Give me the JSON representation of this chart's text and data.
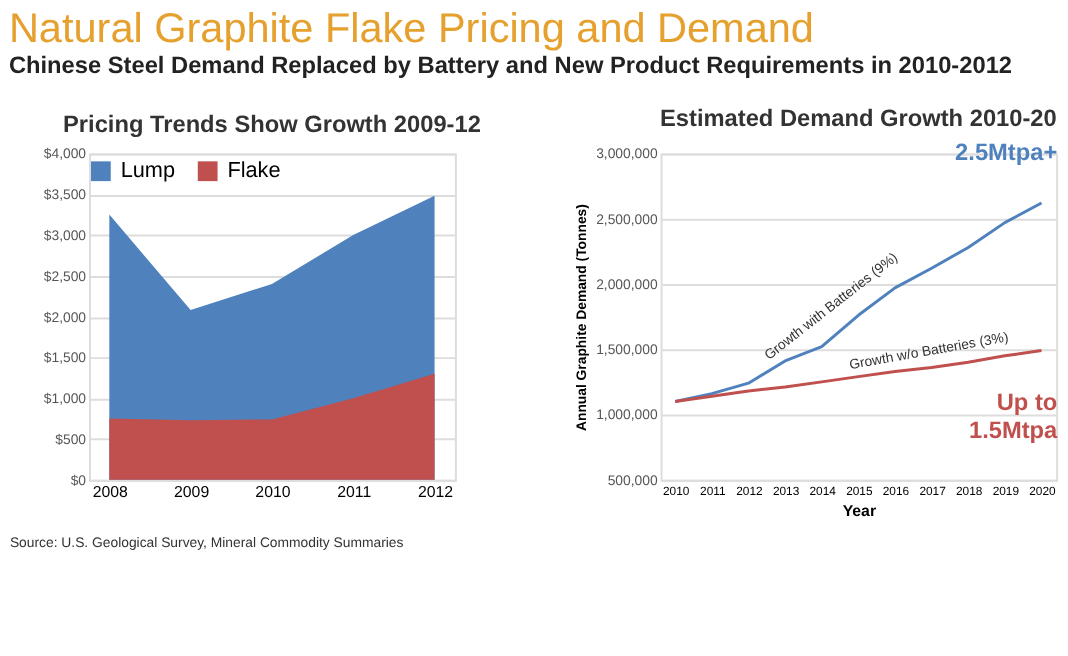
{
  "chart_data": [
    {
      "type": "other",
      "title": "Natural Graphite Flake Pricing and Demand",
      "subtitle": "Chinese Steel Demand Replaced by Battery and New Product Requirements in 2010-2012"
    },
    {
      "type": "area",
      "title": "Pricing Trends Show Growth 2009-12",
      "categories": [
        "2008",
        "2009",
        "2010",
        "2011",
        "2012"
      ],
      "series": [
        {
          "name": "Lump",
          "color": "#4f81bd",
          "values": [
            3250,
            2080,
            2400,
            3000,
            3480
          ]
        },
        {
          "name": "Flake",
          "color": "#c0504d",
          "values": [
            750,
            730,
            740,
            1000,
            1300
          ]
        }
      ],
      "ylim": [
        0,
        4000
      ],
      "yticks": [
        {
          "value": 0,
          "label": "$0"
        },
        {
          "value": 500,
          "label": "$500"
        },
        {
          "value": 1000,
          "label": "$1,000"
        },
        {
          "value": 1500,
          "label": "$1,500"
        },
        {
          "value": 2000,
          "label": "$2,000"
        },
        {
          "value": 2500,
          "label": "$2,500"
        },
        {
          "value": 3000,
          "label": "$3,000"
        },
        {
          "value": 3500,
          "label": "$3,500"
        },
        {
          "value": 4000,
          "label": "$4,000"
        }
      ],
      "grid": "y",
      "legend": "top",
      "annotations": [
        "Source: U.S. Geological Survey, Mineral Commodity Summaries"
      ]
    },
    {
      "type": "line",
      "title": "Estimated Demand Growth 2010-20",
      "xlabel": "Year",
      "ylabel": "Annual Graphite Demand (Tonnes)",
      "categories": [
        "2010",
        "2011",
        "2012",
        "2013",
        "2014",
        "2015",
        "2016",
        "2017",
        "2018",
        "2019",
        "2020"
      ],
      "series": [
        {
          "color": "#4f81bd",
          "values": [
            1100000,
            1160000,
            1240000,
            1410000,
            1520000,
            1760000,
            1970000,
            2120000,
            2280000,
            2470000,
            2620000
          ]
        },
        {
          "color": "#c0504d",
          "values": [
            1100000,
            1140000,
            1180000,
            1210000,
            1250000,
            1290000,
            1330000,
            1360000,
            1400000,
            1450000,
            1490000
          ]
        }
      ],
      "ylim": [
        500000,
        3000000
      ],
      "yticks": [
        {
          "value": 500000,
          "label": "500,000"
        },
        {
          "value": 1000000,
          "label": "1,000,000"
        },
        {
          "value": 1500000,
          "label": "1,500,000"
        },
        {
          "value": 2000000,
          "label": "2,000,000"
        },
        {
          "value": 2500000,
          "label": "2,500,000"
        },
        {
          "value": 3000000,
          "label": "3,000,000"
        }
      ],
      "grid": "y",
      "legend": false,
      "marker": "none",
      "line_style": "solid",
      "annotations": [
        {
          "text": "Growth with Batteries (9%)",
          "x": "2015",
          "y": 1758000
        },
        {
          "text": "Growth w/o Batteries (3%)",
          "x": "2017",
          "y": 1365000
        },
        {
          "text": "2.5Mtpa+",
          "x": "2020",
          "y": 2620000
        },
        {
          "text": "Up to 1.5Mtpa",
          "x": "2020",
          "y": 1490000
        }
      ]
    }
  ]
}
